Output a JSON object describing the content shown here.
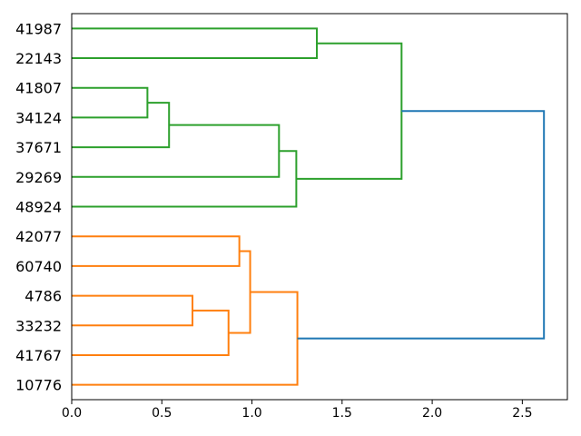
{
  "figure": {
    "background": "#ffffff"
  },
  "chart_data": {
    "type": "dendrogram",
    "title": "",
    "xlabel": "",
    "ylabel": "",
    "grid": false,
    "orientation": "left-labels-root-right",
    "legend": null,
    "leaves": [
      "41987",
      "22143",
      "41807",
      "34124",
      "37671",
      "29269",
      "48924",
      "42077",
      "60740",
      "4786",
      "33232",
      "41767",
      "10776"
    ],
    "links": [
      {
        "id": "n1",
        "children": [
          "41807",
          "34124"
        ],
        "height": 0.42,
        "color": "green"
      },
      {
        "id": "n2",
        "children": [
          "n1",
          "37671"
        ],
        "height": 0.54,
        "color": "green"
      },
      {
        "id": "n3",
        "children": [
          "4786",
          "33232"
        ],
        "height": 0.67,
        "color": "orange"
      },
      {
        "id": "n4",
        "children": [
          "n3",
          "41767"
        ],
        "height": 0.87,
        "color": "orange"
      },
      {
        "id": "n5",
        "children": [
          "42077",
          "60740"
        ],
        "height": 0.93,
        "color": "orange"
      },
      {
        "id": "n6",
        "children": [
          "n5",
          "n4"
        ],
        "height": 0.99,
        "color": "orange"
      },
      {
        "id": "n7",
        "children": [
          "n2",
          "29269"
        ],
        "height": 1.15,
        "color": "green"
      },
      {
        "id": "n8",
        "children": [
          "n7",
          "48924"
        ],
        "height": 1.246,
        "color": "green"
      },
      {
        "id": "n9",
        "children": [
          "n6",
          "10776"
        ],
        "height": 1.252,
        "color": "orange"
      },
      {
        "id": "n10",
        "children": [
          "41987",
          "22143"
        ],
        "height": 1.36,
        "color": "green"
      },
      {
        "id": "n11",
        "children": [
          "n10",
          "n8"
        ],
        "height": 1.83,
        "color": "green"
      },
      {
        "id": "n12",
        "children": [
          "n11",
          "n9"
        ],
        "height": 2.62,
        "color": "blue"
      }
    ],
    "xticks": [
      {
        "value": 0.0,
        "label": "0.0"
      },
      {
        "value": 0.5,
        "label": "0.5"
      },
      {
        "value": 1.0,
        "label": "1.0"
      },
      {
        "value": 1.5,
        "label": "1.5"
      },
      {
        "value": 2.0,
        "label": "2.0"
      },
      {
        "value": 2.5,
        "label": "2.5"
      }
    ],
    "xlim": [
      0,
      2.75
    ],
    "colors": {
      "green": "#2ca02c",
      "orange": "#ff7f0e",
      "blue": "#1f77b4",
      "axis": "#000000",
      "background": "#ffffff"
    }
  }
}
